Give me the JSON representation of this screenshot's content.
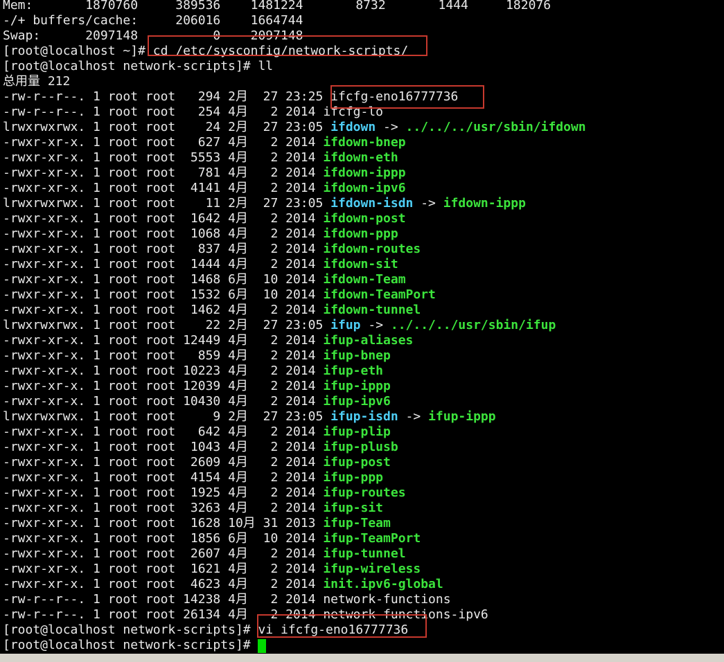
{
  "colors": {
    "background": "#000000",
    "text": "#e9e9e9",
    "executable_green": "#3ce43c",
    "symlink_cyan": "#4ecef5",
    "highlight_box_red": "#c7392e",
    "cursor_green": "#00dc00",
    "bottom_bar_gray": "#d7d3cb"
  },
  "free_output": {
    "mem_row": {
      "label": "Mem:",
      "total": "1870760",
      "used": "389536",
      "free": "1481224",
      "shared": "8732",
      "buffers": "1444",
      "cached": "182076"
    },
    "buffers_row": {
      "label": "-/+ buffers/cache:",
      "used": "206016",
      "free": "1664744"
    },
    "swap_row": {
      "label": "Swap:",
      "total": "2097148",
      "used": "0",
      "free": "2097148"
    }
  },
  "prompts": {
    "home": "[root@localhost ~]#",
    "network_scripts": "[root@localhost network-scripts]#"
  },
  "commands": {
    "cd": "cd /etc/sysconfig/network-scripts/",
    "ll": "ll",
    "vi": "vi ifcfg-eno16777736"
  },
  "listing": {
    "total_line": "总用量 212",
    "files": [
      {
        "perms": "-rw-r--r--.",
        "links": "1",
        "owner": "root",
        "group": "root",
        "size": "294",
        "date": "2月  27 23:25",
        "name": "ifcfg-eno16777736",
        "type": "file"
      },
      {
        "perms": "-rw-r--r--.",
        "links": "1",
        "owner": "root",
        "group": "root",
        "size": "254",
        "date": "4月   2 2014",
        "name": "ifcfg-lo",
        "type": "file"
      },
      {
        "perms": "lrwxrwxrwx.",
        "links": "1",
        "owner": "root",
        "group": "root",
        "size": "24",
        "date": "2月  27 23:05",
        "name": "ifdown",
        "type": "symlink",
        "target": "../../../usr/sbin/ifdown"
      },
      {
        "perms": "-rwxr-xr-x.",
        "links": "1",
        "owner": "root",
        "group": "root",
        "size": "627",
        "date": "4月   2 2014",
        "name": "ifdown-bnep",
        "type": "exec"
      },
      {
        "perms": "-rwxr-xr-x.",
        "links": "1",
        "owner": "root",
        "group": "root",
        "size": "5553",
        "date": "4月   2 2014",
        "name": "ifdown-eth",
        "type": "exec"
      },
      {
        "perms": "-rwxr-xr-x.",
        "links": "1",
        "owner": "root",
        "group": "root",
        "size": "781",
        "date": "4月   2 2014",
        "name": "ifdown-ippp",
        "type": "exec"
      },
      {
        "perms": "-rwxr-xr-x.",
        "links": "1",
        "owner": "root",
        "group": "root",
        "size": "4141",
        "date": "4月   2 2014",
        "name": "ifdown-ipv6",
        "type": "exec"
      },
      {
        "perms": "lrwxrwxrwx.",
        "links": "1",
        "owner": "root",
        "group": "root",
        "size": "11",
        "date": "2月  27 23:05",
        "name": "ifdown-isdn",
        "type": "symlink",
        "target": "ifdown-ippp"
      },
      {
        "perms": "-rwxr-xr-x.",
        "links": "1",
        "owner": "root",
        "group": "root",
        "size": "1642",
        "date": "4月   2 2014",
        "name": "ifdown-post",
        "type": "exec"
      },
      {
        "perms": "-rwxr-xr-x.",
        "links": "1",
        "owner": "root",
        "group": "root",
        "size": "1068",
        "date": "4月   2 2014",
        "name": "ifdown-ppp",
        "type": "exec"
      },
      {
        "perms": "-rwxr-xr-x.",
        "links": "1",
        "owner": "root",
        "group": "root",
        "size": "837",
        "date": "4月   2 2014",
        "name": "ifdown-routes",
        "type": "exec"
      },
      {
        "perms": "-rwxr-xr-x.",
        "links": "1",
        "owner": "root",
        "group": "root",
        "size": "1444",
        "date": "4月   2 2014",
        "name": "ifdown-sit",
        "type": "exec"
      },
      {
        "perms": "-rwxr-xr-x.",
        "links": "1",
        "owner": "root",
        "group": "root",
        "size": "1468",
        "date": "6月  10 2014",
        "name": "ifdown-Team",
        "type": "exec"
      },
      {
        "perms": "-rwxr-xr-x.",
        "links": "1",
        "owner": "root",
        "group": "root",
        "size": "1532",
        "date": "6月  10 2014",
        "name": "ifdown-TeamPort",
        "type": "exec"
      },
      {
        "perms": "-rwxr-xr-x.",
        "links": "1",
        "owner": "root",
        "group": "root",
        "size": "1462",
        "date": "4月   2 2014",
        "name": "ifdown-tunnel",
        "type": "exec"
      },
      {
        "perms": "lrwxrwxrwx.",
        "links": "1",
        "owner": "root",
        "group": "root",
        "size": "22",
        "date": "2月  27 23:05",
        "name": "ifup",
        "type": "symlink",
        "target": "../../../usr/sbin/ifup"
      },
      {
        "perms": "-rwxr-xr-x.",
        "links": "1",
        "owner": "root",
        "group": "root",
        "size": "12449",
        "date": "4月   2 2014",
        "name": "ifup-aliases",
        "type": "exec"
      },
      {
        "perms": "-rwxr-xr-x.",
        "links": "1",
        "owner": "root",
        "group": "root",
        "size": "859",
        "date": "4月   2 2014",
        "name": "ifup-bnep",
        "type": "exec"
      },
      {
        "perms": "-rwxr-xr-x.",
        "links": "1",
        "owner": "root",
        "group": "root",
        "size": "10223",
        "date": "4月   2 2014",
        "name": "ifup-eth",
        "type": "exec"
      },
      {
        "perms": "-rwxr-xr-x.",
        "links": "1",
        "owner": "root",
        "group": "root",
        "size": "12039",
        "date": "4月   2 2014",
        "name": "ifup-ippp",
        "type": "exec"
      },
      {
        "perms": "-rwxr-xr-x.",
        "links": "1",
        "owner": "root",
        "group": "root",
        "size": "10430",
        "date": "4月   2 2014",
        "name": "ifup-ipv6",
        "type": "exec"
      },
      {
        "perms": "lrwxrwxrwx.",
        "links": "1",
        "owner": "root",
        "group": "root",
        "size": "9",
        "date": "2月  27 23:05",
        "name": "ifup-isdn",
        "type": "symlink",
        "target": "ifup-ippp"
      },
      {
        "perms": "-rwxr-xr-x.",
        "links": "1",
        "owner": "root",
        "group": "root",
        "size": "642",
        "date": "4月   2 2014",
        "name": "ifup-plip",
        "type": "exec"
      },
      {
        "perms": "-rwxr-xr-x.",
        "links": "1",
        "owner": "root",
        "group": "root",
        "size": "1043",
        "date": "4月   2 2014",
        "name": "ifup-plusb",
        "type": "exec"
      },
      {
        "perms": "-rwxr-xr-x.",
        "links": "1",
        "owner": "root",
        "group": "root",
        "size": "2609",
        "date": "4月   2 2014",
        "name": "ifup-post",
        "type": "exec"
      },
      {
        "perms": "-rwxr-xr-x.",
        "links": "1",
        "owner": "root",
        "group": "root",
        "size": "4154",
        "date": "4月   2 2014",
        "name": "ifup-ppp",
        "type": "exec"
      },
      {
        "perms": "-rwxr-xr-x.",
        "links": "1",
        "owner": "root",
        "group": "root",
        "size": "1925",
        "date": "4月   2 2014",
        "name": "ifup-routes",
        "type": "exec"
      },
      {
        "perms": "-rwxr-xr-x.",
        "links": "1",
        "owner": "root",
        "group": "root",
        "size": "3263",
        "date": "4月   2 2014",
        "name": "ifup-sit",
        "type": "exec"
      },
      {
        "perms": "-rwxr-xr-x.",
        "links": "1",
        "owner": "root",
        "group": "root",
        "size": "1628",
        "date": "10月 31 2013",
        "name": "ifup-Team",
        "type": "exec"
      },
      {
        "perms": "-rwxr-xr-x.",
        "links": "1",
        "owner": "root",
        "group": "root",
        "size": "1856",
        "date": "6月  10 2014",
        "name": "ifup-TeamPort",
        "type": "exec"
      },
      {
        "perms": "-rwxr-xr-x.",
        "links": "1",
        "owner": "root",
        "group": "root",
        "size": "2607",
        "date": "4月   2 2014",
        "name": "ifup-tunnel",
        "type": "exec"
      },
      {
        "perms": "-rwxr-xr-x.",
        "links": "1",
        "owner": "root",
        "group": "root",
        "size": "1621",
        "date": "4月   2 2014",
        "name": "ifup-wireless",
        "type": "exec"
      },
      {
        "perms": "-rwxr-xr-x.",
        "links": "1",
        "owner": "root",
        "group": "root",
        "size": "4623",
        "date": "4月   2 2014",
        "name": "init.ipv6-global",
        "type": "exec"
      },
      {
        "perms": "-rw-r--r--.",
        "links": "1",
        "owner": "root",
        "group": "root",
        "size": "14238",
        "date": "4月   2 2014",
        "name": "network-functions",
        "type": "file"
      },
      {
        "perms": "-rw-r--r--.",
        "links": "1",
        "owner": "root",
        "group": "root",
        "size": "26134",
        "date": "4月   2 2014",
        "name": "network-functions-ipv6",
        "type": "file"
      }
    ]
  }
}
